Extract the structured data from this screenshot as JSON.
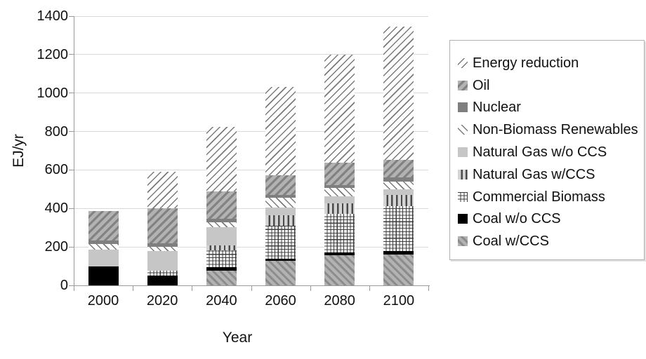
{
  "colors": {
    "background": "#ffffff",
    "gridline": "#d9d9d9",
    "axis": "#9a9a9a",
    "text": "#111111",
    "legend_border": "#b0b0b0"
  },
  "chart_data": {
    "type": "bar",
    "stacked": true,
    "title": "",
    "xlabel": "Year",
    "ylabel": "EJ/yr",
    "ylim": [
      0,
      1400
    ],
    "yticks": [
      "0",
      "200",
      "400",
      "600",
      "800",
      "1000",
      "1200",
      "1400"
    ],
    "grid": "horizontal",
    "legend_position": "right-outside",
    "categories": [
      "2000",
      "2020",
      "2040",
      "2060",
      "2080",
      "2100"
    ],
    "series": [
      {
        "name": "Energy reduction",
        "values": [
          0,
          190,
          335,
          456,
          562,
          693
        ],
        "style": {
          "kind": "diag-fwd",
          "bg": "#ffffff",
          "fg": "#7a7a7a",
          "period": 7.2,
          "line": 1.5
        }
      },
      {
        "name": "Oil",
        "values": [
          150,
          180,
          145,
          102,
          115,
          92
        ],
        "style": {
          "kind": "diag-fwd",
          "bg": "#b2b2b2",
          "fg": "#828282",
          "period": 8,
          "line": 3.2
        }
      },
      {
        "name": "Nuclear",
        "values": [
          20,
          18,
          16,
          18,
          18,
          20
        ],
        "style": {
          "kind": "solid",
          "bg": "#7f7f7f"
        }
      },
      {
        "name": "Non-Biomass Renewables",
        "values": [
          30,
          22,
          26,
          48,
          43,
          40
        ],
        "style": {
          "kind": "diag-back",
          "bg": "#ffffff",
          "fg": "#7a7a7a",
          "period": 7.2,
          "line": 1.5
        }
      },
      {
        "name": "Natural Gas w/o CCS",
        "values": [
          85,
          105,
          97,
          42,
          36,
          30
        ],
        "style": {
          "kind": "solid",
          "bg": "#c6c6c6"
        }
      },
      {
        "name": "Natural Gas w/CCS",
        "values": [
          0,
          0,
          25,
          55,
          55,
          58
        ],
        "style": {
          "kind": "vertical",
          "bg": "#d4d4d4",
          "fg": "#4a4a4a",
          "period": 6.8,
          "line": 2.4
        }
      },
      {
        "name": "Commercial Biomass",
        "values": [
          0,
          25,
          85,
          171,
          200,
          235
        ],
        "style": {
          "kind": "cross",
          "bg": "#ffffff",
          "fg": "#3d3d3d",
          "period": 4.7,
          "line": 1.1
        }
      },
      {
        "name": "Coal w/o CCS",
        "values": [
          100,
          50,
          18,
          12,
          15,
          15
        ],
        "style": {
          "kind": "solid",
          "bg": "#000000"
        }
      },
      {
        "name": "Coal w/CCS",
        "values": [
          0,
          0,
          78,
          126,
          156,
          162
        ],
        "style": {
          "kind": "diag-back",
          "bg": "#b2b2b2",
          "fg": "#8c8c8c",
          "period": 7.5,
          "line": 3
        }
      }
    ],
    "totals": [
      385,
      590,
      825,
      1030,
      1200,
      1345
    ]
  }
}
